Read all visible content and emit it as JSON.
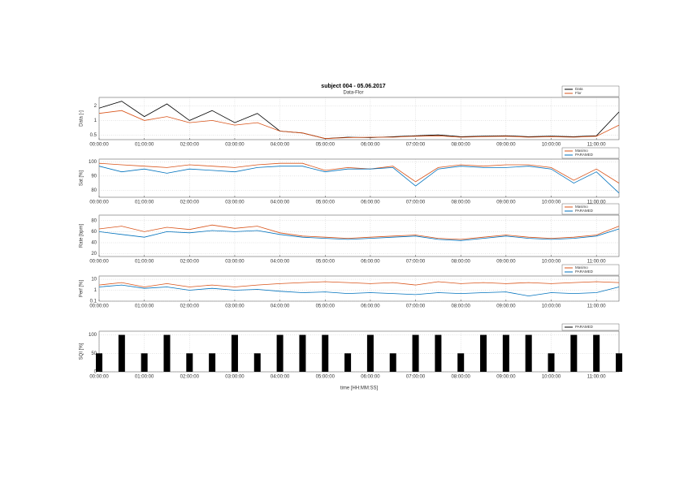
{
  "chart_data": [
    {
      "type": "line",
      "title": "subject 004 - 05.06.2017",
      "subtitle": "Data-Flor",
      "y_label": "Data [-]",
      "log_y": true,
      "grid": true,
      "legend": "top-right",
      "x": [
        0,
        0.5,
        1,
        1.5,
        2,
        2.5,
        3,
        3.5,
        4,
        4.5,
        5,
        5.5,
        6,
        6.5,
        7,
        7.5,
        8,
        8.5,
        9,
        9.5,
        10,
        10.5,
        11,
        11.5
      ],
      "xlim": [
        0,
        11.5
      ],
      "xticks": [
        {
          "value": 0,
          "label": "00:00:00"
        },
        {
          "value": 1,
          "label": "01:00:00"
        },
        {
          "value": 2,
          "label": "02:00:00"
        },
        {
          "value": 3,
          "label": "03:00:00"
        },
        {
          "value": 4,
          "label": "04:00:00"
        },
        {
          "value": 5,
          "label": "05:00:00"
        },
        {
          "value": 6,
          "label": "06:00:00"
        },
        {
          "value": 7,
          "label": "07:00:00"
        },
        {
          "value": 8,
          "label": "08:00:00"
        },
        {
          "value": 9,
          "label": "09:00:00"
        },
        {
          "value": 10,
          "label": "10:00:00"
        },
        {
          "value": 11,
          "label": "11:00:00"
        }
      ],
      "ylim": [
        0.4,
        3
      ],
      "yticks": [
        0.5,
        1,
        2
      ],
      "series": [
        {
          "name": "Data",
          "color": "#000000",
          "values": [
            1.8,
            2.5,
            1.2,
            2.2,
            1.0,
            1.6,
            0.9,
            1.4,
            0.6,
            0.55,
            0.42,
            0.45,
            0.44,
            0.46,
            0.48,
            0.5,
            0.46,
            0.47,
            0.48,
            0.46,
            0.47,
            0.46,
            0.48,
            1.5
          ]
        },
        {
          "name": "Flor",
          "color": "#d95319",
          "values": [
            1.4,
            1.6,
            1.0,
            1.2,
            0.9,
            1.0,
            0.8,
            0.9,
            0.6,
            0.55,
            0.42,
            0.44,
            0.45,
            0.45,
            0.47,
            0.48,
            0.45,
            0.46,
            0.47,
            0.45,
            0.46,
            0.45,
            0.47,
            0.8
          ]
        }
      ]
    },
    {
      "type": "line",
      "y_label": "Sat [%]",
      "log_y": false,
      "grid": true,
      "legend": "top-right",
      "x": [
        0,
        0.5,
        1,
        1.5,
        2,
        2.5,
        3,
        3.5,
        4,
        4.5,
        5,
        5.5,
        6,
        6.5,
        7,
        7.5,
        8,
        8.5,
        9,
        9.5,
        10,
        10.5,
        11,
        11.5
      ],
      "xlim": [
        0,
        11.5
      ],
      "xticks": [
        {
          "value": 0,
          "label": "00:00:00"
        },
        {
          "value": 1,
          "label": "01:00:00"
        },
        {
          "value": 2,
          "label": "02:00:00"
        },
        {
          "value": 3,
          "label": "03:00:00"
        },
        {
          "value": 4,
          "label": "04:00:00"
        },
        {
          "value": 5,
          "label": "05:00:00"
        },
        {
          "value": 6,
          "label": "06:00:00"
        },
        {
          "value": 7,
          "label": "07:00:00"
        },
        {
          "value": 8,
          "label": "08:00:00"
        },
        {
          "value": 9,
          "label": "09:00:00"
        },
        {
          "value": 10,
          "label": "10:00:00"
        },
        {
          "value": 11,
          "label": "11:00:00"
        }
      ],
      "ylim": [
        75,
        102
      ],
      "yticks": [
        80,
        90,
        100
      ],
      "series": [
        {
          "name": "Masimo",
          "color": "#d95319",
          "values": [
            99,
            98,
            97,
            96,
            98,
            97,
            96,
            98,
            99,
            99,
            94,
            96,
            95,
            97,
            86,
            96,
            98,
            97,
            98,
            98,
            96,
            87,
            95,
            85
          ]
        },
        {
          "name": "PARAMED",
          "color": "#0072bd",
          "values": [
            97,
            93,
            95,
            92,
            95,
            94,
            93,
            96,
            97,
            97,
            93,
            95,
            95,
            96,
            83,
            95,
            97,
            96,
            96,
            97,
            95,
            85,
            93,
            78
          ]
        }
      ]
    },
    {
      "type": "line",
      "y_label": "Rate [bpm]",
      "log_y": false,
      "grid": true,
      "legend": "top-right",
      "x": [
        0,
        0.5,
        1,
        1.5,
        2,
        2.5,
        3,
        3.5,
        4,
        4.5,
        5,
        5.5,
        6,
        6.5,
        7,
        7.5,
        8,
        8.5,
        9,
        9.5,
        10,
        10.5,
        11,
        11.5
      ],
      "xlim": [
        0,
        11.5
      ],
      "xticks": [
        {
          "value": 0,
          "label": "00:00:00"
        },
        {
          "value": 1,
          "label": "01:00:00"
        },
        {
          "value": 2,
          "label": "02:00:00"
        },
        {
          "value": 3,
          "label": "03:00:00"
        },
        {
          "value": 4,
          "label": "04:00:00"
        },
        {
          "value": 5,
          "label": "05:00:00"
        },
        {
          "value": 6,
          "label": "06:00:00"
        },
        {
          "value": 7,
          "label": "07:00:00"
        },
        {
          "value": 8,
          "label": "08:00:00"
        },
        {
          "value": 9,
          "label": "09:00:00"
        },
        {
          "value": 10,
          "label": "10:00:00"
        },
        {
          "value": 11,
          "label": "11:00:00"
        }
      ],
      "ylim": [
        15,
        90
      ],
      "yticks": [
        20,
        40,
        60,
        80
      ],
      "series": [
        {
          "name": "Masimo",
          "color": "#d95319",
          "values": [
            65,
            70,
            60,
            68,
            64,
            72,
            66,
            70,
            58,
            52,
            50,
            48,
            50,
            52,
            54,
            48,
            46,
            50,
            54,
            50,
            48,
            50,
            54,
            70
          ]
        },
        {
          "name": "PARAMED",
          "color": "#0072bd",
          "values": [
            60,
            55,
            50,
            60,
            58,
            62,
            60,
            62,
            55,
            50,
            48,
            46,
            48,
            50,
            52,
            46,
            44,
            48,
            52,
            48,
            46,
            48,
            52,
            65
          ]
        }
      ]
    },
    {
      "type": "line",
      "y_label": "Perf [%]",
      "log_y": true,
      "grid": true,
      "legend": "top-right",
      "x": [
        0,
        0.5,
        1,
        1.5,
        2,
        2.5,
        3,
        3.5,
        4,
        4.5,
        5,
        5.5,
        6,
        6.5,
        7,
        7.5,
        8,
        8.5,
        9,
        9.5,
        10,
        10.5,
        11,
        11.5
      ],
      "xlim": [
        0,
        11.5
      ],
      "xticks": [
        {
          "value": 0,
          "label": "00:00:00"
        },
        {
          "value": 1,
          "label": "01:00:00"
        },
        {
          "value": 2,
          "label": "02:00:00"
        },
        {
          "value": 3,
          "label": "03:00:00"
        },
        {
          "value": 4,
          "label": "04:00:00"
        },
        {
          "value": 5,
          "label": "05:00:00"
        },
        {
          "value": 6,
          "label": "06:00:00"
        },
        {
          "value": 7,
          "label": "07:00:00"
        },
        {
          "value": 8,
          "label": "08:00:00"
        },
        {
          "value": 9,
          "label": "09:00:00"
        },
        {
          "value": 10,
          "label": "10:00:00"
        },
        {
          "value": 11,
          "label": "11:00:00"
        }
      ],
      "ylim": [
        0.1,
        20
      ],
      "yticks": [
        0.1,
        1,
        10
      ],
      "series": [
        {
          "name": "Masimo",
          "color": "#d95319",
          "values": [
            3,
            5,
            2,
            4,
            2,
            3,
            2,
            3,
            4,
            5,
            6,
            5,
            4,
            5,
            3,
            6,
            4,
            5,
            4,
            5,
            4,
            5,
            6,
            5
          ]
        },
        {
          "name": "PARAMED",
          "color": "#0072bd",
          "values": [
            2,
            3,
            1.5,
            2,
            1,
            1.5,
            1,
            1.2,
            0.8,
            0.6,
            0.7,
            0.5,
            0.6,
            0.5,
            0.4,
            0.6,
            0.5,
            0.6,
            0.7,
            0.3,
            0.6,
            0.5,
            0.6,
            2
          ]
        }
      ]
    },
    {
      "type": "bar",
      "y_label": "SQI [%]",
      "x_label": "time [HH:MM:SS]",
      "log_y": false,
      "grid": true,
      "legend": "top-right",
      "x": [
        0,
        0.5,
        1,
        1.5,
        2,
        2.5,
        3,
        3.5,
        4,
        4.5,
        5,
        5.5,
        6,
        6.5,
        7,
        7.5,
        8,
        8.5,
        9,
        9.5,
        10,
        10.5,
        11,
        11.5
      ],
      "xlim": [
        0,
        11.5
      ],
      "xticks": [
        {
          "value": 0,
          "label": "00:00:00"
        },
        {
          "value": 1,
          "label": "01:00:00"
        },
        {
          "value": 2,
          "label": "02:00:00"
        },
        {
          "value": 3,
          "label": "03:00:00"
        },
        {
          "value": 4,
          "label": "04:00:00"
        },
        {
          "value": 5,
          "label": "05:00:00"
        },
        {
          "value": 6,
          "label": "06:00:00"
        },
        {
          "value": 7,
          "label": "07:00:00"
        },
        {
          "value": 8,
          "label": "08:00:00"
        },
        {
          "value": 9,
          "label": "09:00:00"
        },
        {
          "value": 10,
          "label": "10:00:00"
        },
        {
          "value": 11,
          "label": "11:00:00"
        }
      ],
      "ylim": [
        0,
        110
      ],
      "yticks": [
        0,
        50,
        100
      ],
      "series": [
        {
          "name": "PARAMED",
          "color": "#000000",
          "values": [
            50,
            100,
            50,
            100,
            50,
            50,
            100,
            50,
            100,
            100,
            100,
            50,
            100,
            50,
            100,
            100,
            50,
            100,
            100,
            100,
            50,
            100,
            100,
            50
          ]
        }
      ]
    }
  ]
}
